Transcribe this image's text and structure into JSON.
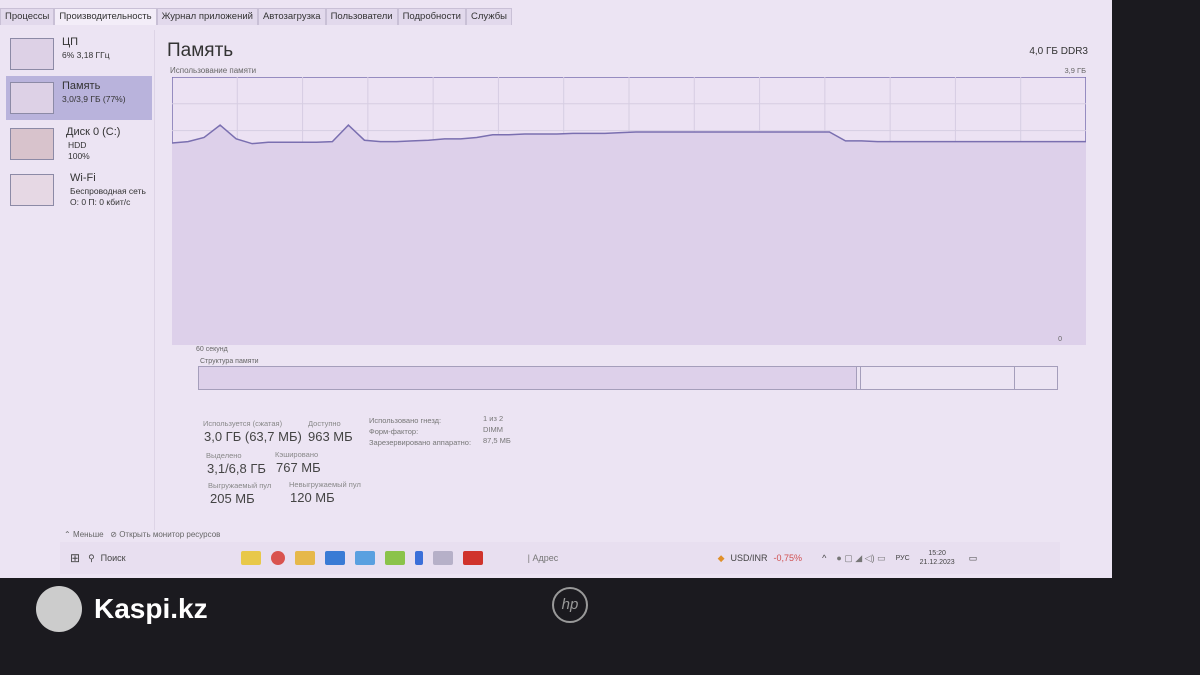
{
  "tabs": [
    "Процессы",
    "Производительность",
    "Журнал приложений",
    "Автозагрузка",
    "Пользователи",
    "Подробности",
    "Службы"
  ],
  "active_tab": 1,
  "sidebar": {
    "items": [
      {
        "title": "ЦП",
        "sub1": "6% 3,18 ГГц",
        "sub2": ""
      },
      {
        "title": "Память",
        "sub1": "3,0/3,9 ГБ (77%)",
        "sub2": ""
      },
      {
        "title": "Диск 0 (C:)",
        "sub1": "HDD",
        "sub2": "100%"
      },
      {
        "title": "Wi-Fi",
        "sub1": "Беспроводная сеть",
        "sub2": "О: 0 П: 0 кбит/с"
      }
    ]
  },
  "main": {
    "title": "Память",
    "type": "4,0 ГБ DDR3",
    "graph_label": "Использование памяти",
    "max_label": "3,9 ГБ",
    "time_label": "60 секунд",
    "zero_label": "0",
    "struct_label": "Структура памяти"
  },
  "chart_data": {
    "type": "area",
    "ylim": [
      0,
      3.9
    ],
    "unit": "ГБ",
    "color": "#7a6fb0",
    "values": [
      2.94,
      2.96,
      3.02,
      3.2,
      3.0,
      2.93,
      2.95,
      2.95,
      2.95,
      2.95,
      2.96,
      3.2,
      2.98,
      2.96,
      2.96,
      2.97,
      2.98,
      3.0,
      3.0,
      3.02,
      3.06,
      3.06,
      3.07,
      3.07,
      3.07,
      3.08,
      3.08,
      3.08,
      3.09,
      3.1,
      3.1,
      3.1,
      3.1,
      3.1,
      3.1,
      3.1,
      3.1,
      3.1,
      3.1,
      3.1,
      3.1,
      3.1,
      2.97,
      2.97,
      2.96,
      2.96,
      2.96,
      2.96,
      2.96,
      2.96,
      2.96,
      2.96,
      2.96,
      2.96,
      2.96,
      2.96,
      2.96,
      2.96
    ]
  },
  "stats": {
    "in_use_label": "Используется (сжатая)",
    "in_use": "3,0 ГБ (63,7 МБ)",
    "available_label": "Доступно",
    "available": "963 МБ",
    "committed_label": "Выделено",
    "committed": "3,1/6,8 ГБ",
    "cached_label": "Кэшировано",
    "cached": "767 МБ",
    "paged_label": "Выгружаемый пул",
    "paged": "205 МБ",
    "nonpaged_label": "Невыгружаемый пул",
    "nonpaged": "120 МБ",
    "slots_label": "Использовано гнезд:",
    "slots": "1 из 2",
    "form_label": "Форм-фактор:",
    "form": "DIMM",
    "reserved_label": "Зарезервировано аппаратно:",
    "reserved": "87,5 МБ"
  },
  "footer": {
    "less": "Меньше",
    "monitor": "Открыть монитор ресурсов"
  },
  "taskbar": {
    "search": "Поиск",
    "address": "Адрес",
    "ticker": "USD/INR",
    "change": "-0,75%",
    "lang": "РУС",
    "time": "15:20",
    "date": "21.12.2023"
  },
  "watermark": "Kaspi.kz",
  "brand": "hp"
}
